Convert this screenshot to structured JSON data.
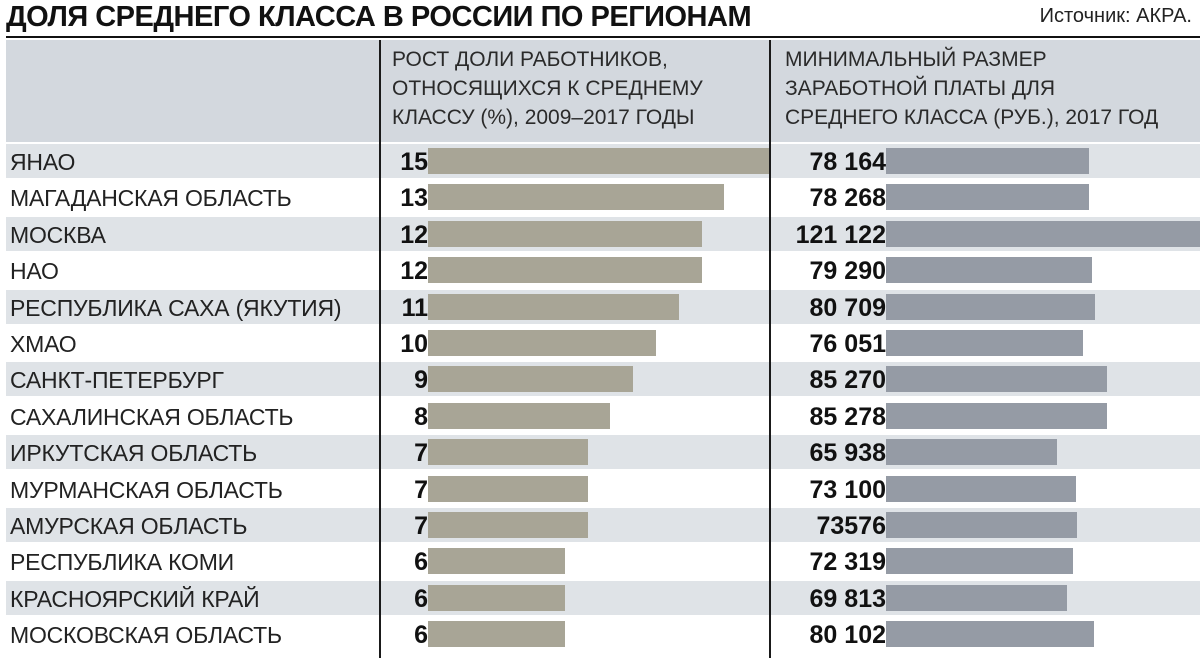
{
  "title": "ДОЛЯ СРЕДНЕГО КЛАССА В РОССИИ ПО РЕГИОНАМ",
  "source": "Источник: АКРА.",
  "chart_data": {
    "type": "bar",
    "title": "ДОЛЯ СРЕДНЕГО КЛАССА В РОССИИ ПО РЕГИОНАМ",
    "categories": [
      "ЯНАО",
      "МАГАДАНСКАЯ ОБЛАСТЬ",
      "МОСКВА",
      "НАО",
      "РЕСПУБЛИКА САХА (ЯКУТИЯ)",
      "ХМАО",
      "САНКТ-ПЕТЕРБУРГ",
      "САХАЛИНСКАЯ ОБЛАСТЬ",
      "ИРКУТСКАЯ ОБЛАСТЬ",
      "МУРМАНСКАЯ ОБЛАСТЬ",
      "АМУРСКАЯ ОБЛАСТЬ",
      "РЕСПУБЛИКА КОМИ",
      "КРАСНОЯРСКИЙ КРАЙ",
      "МОСКОВСКАЯ ОБЛАСТЬ"
    ],
    "series": [
      {
        "name": "РОСТ ДОЛИ РАБОТНИКОВ, ОТНОСЯЩИХСЯ К СРЕДНЕМУ КЛАССУ (%), 2009–2017 ГОДЫ",
        "header_lines": [
          "РОСТ ДОЛИ РАБОТНИКОВ,",
          "ОТНОСЯЩИХСЯ К СРЕДНЕМУ",
          "КЛАССУ (%), 2009–2017 ГОДЫ"
        ],
        "color": "#a8a596",
        "values": [
          15,
          13,
          12,
          12,
          11,
          10,
          9,
          8,
          7,
          7,
          7,
          6,
          6,
          6
        ],
        "labels": [
          "15",
          "13",
          "12",
          "12",
          "11",
          "10",
          "9",
          "8",
          "7",
          "7",
          "7",
          "6",
          "6",
          "6"
        ],
        "range": [
          0,
          15
        ]
      },
      {
        "name": "МИНИМАЛЬНЫЙ РАЗМЕР ЗАРАБОТНОЙ ПЛАТЫ ДЛЯ СРЕДНЕГО КЛАССА (РУБ.), 2017 ГОД",
        "header_lines": [
          "МИНИМАЛЬНЫЙ РАЗМЕР",
          "ЗАРАБОТНОЙ ПЛАТЫ ДЛЯ",
          "СРЕДНЕГО КЛАССА (РУБ.), 2017 ГОД"
        ],
        "color": "#959ba5",
        "values": [
          78164,
          78268,
          121122,
          79290,
          80709,
          76051,
          85270,
          85278,
          65938,
          73100,
          73576,
          72319,
          69813,
          80102
        ],
        "labels": [
          "78 164",
          "78 268",
          "121 122",
          "79 290",
          "80 709",
          "76 051",
          "85 270",
          "85 278",
          "65 938",
          "73 100",
          "73576",
          "72 319",
          "69 813",
          "80 102"
        ],
        "range": [
          0,
          121122
        ]
      }
    ]
  }
}
